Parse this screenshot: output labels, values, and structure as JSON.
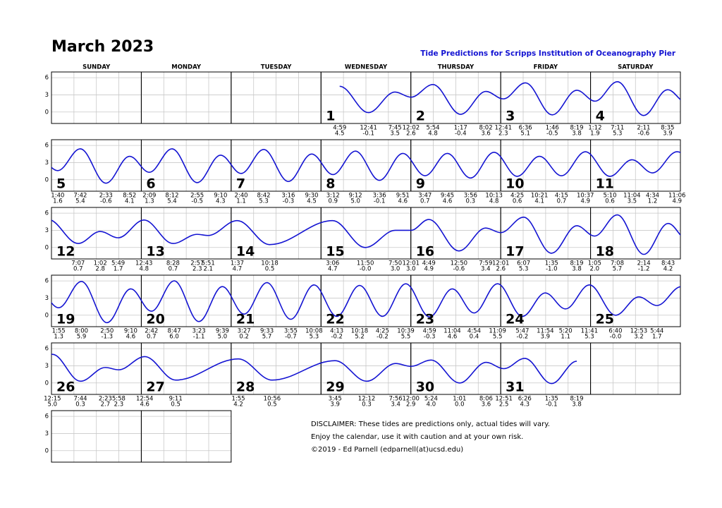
{
  "chart_data": {
    "type": "line",
    "title": "March 2023",
    "subtitle": "Tide Predictions for Scripps Institution of Oceanography Pier",
    "weekdays": [
      "SUNDAY",
      "MONDAY",
      "TUESDAY",
      "WEDNESDAY",
      "THURSDAY",
      "FRIDAY",
      "SATURDAY"
    ],
    "color": "#1414d2",
    "ylim": [
      -2,
      7
    ],
    "yticks": [
      6,
      3,
      0
    ],
    "grid": true,
    "days": [
      {
        "day": 1,
        "tides": [
          {
            "time": "4:59",
            "height": 4.5
          },
          {
            "time": "12:41",
            "height": -0.1
          },
          {
            "time": "7:45",
            "height": 3.5
          }
        ]
      },
      {
        "day": 2,
        "tides": [
          {
            "time": "12:02",
            "height": 2.6
          },
          {
            "time": "5:54",
            "height": 4.8
          },
          {
            "time": "1:17",
            "height": -0.4
          },
          {
            "time": "8:02",
            "height": 3.6
          }
        ]
      },
      {
        "day": 3,
        "tides": [
          {
            "time": "12:41",
            "height": 2.3
          },
          {
            "time": "6:36",
            "height": 5.1
          },
          {
            "time": "1:46",
            "height": -0.5
          },
          {
            "time": "8:19",
            "height": 3.8
          }
        ]
      },
      {
        "day": 4,
        "tides": [
          {
            "time": "1:12",
            "height": 1.9
          },
          {
            "time": "7:11",
            "height": 5.3
          },
          {
            "time": "2:11",
            "height": -0.6
          },
          {
            "time": "8:35",
            "height": 3.9
          }
        ]
      },
      {
        "day": 5,
        "tides": [
          {
            "time": "1:40",
            "height": 1.6
          },
          {
            "time": "7:42",
            "height": 5.4
          },
          {
            "time": "2:33",
            "height": -0.6
          },
          {
            "time": "8:52",
            "height": 4.1
          }
        ]
      },
      {
        "day": 6,
        "tides": [
          {
            "time": "2:09",
            "height": 1.3
          },
          {
            "time": "8:12",
            "height": 5.4
          },
          {
            "time": "2:55",
            "height": -0.5
          },
          {
            "time": "9:10",
            "height": 4.3
          }
        ]
      },
      {
        "day": 7,
        "tides": [
          {
            "time": "2:40",
            "height": 1.1
          },
          {
            "time": "8:42",
            "height": 5.3
          },
          {
            "time": "3:16",
            "height": -0.3
          },
          {
            "time": "9:30",
            "height": 4.5
          }
        ]
      },
      {
        "day": 8,
        "tides": [
          {
            "time": "3:12",
            "height": 0.9
          },
          {
            "time": "9:12",
            "height": 5,
            "label": "5.0"
          },
          {
            "time": "3:36",
            "height": -0.1
          },
          {
            "time": "9:51",
            "height": 4.6
          }
        ]
      },
      {
        "day": 9,
        "tides": [
          {
            "time": "3:47",
            "height": 0.7
          },
          {
            "time": "9:45",
            "height": 4.6
          },
          {
            "time": "3:56",
            "height": 0.3
          },
          {
            "time": "10:13",
            "height": 4.8
          }
        ]
      },
      {
        "day": 10,
        "tides": [
          {
            "time": "4:25",
            "height": 0.6
          },
          {
            "time": "10:21",
            "height": 4.1
          },
          {
            "time": "4:15",
            "height": 0.7
          },
          {
            "time": "10:37",
            "height": 4.9
          }
        ]
      },
      {
        "day": 11,
        "tides": [
          {
            "time": "5:10",
            "height": 0.6
          },
          {
            "time": "11:04",
            "height": 3.5
          },
          {
            "time": "4:34",
            "height": 1.2
          },
          {
            "time": "11:06",
            "height": 4.9
          }
        ]
      },
      {
        "day": 12,
        "tides": [
          {
            "time": "7:07",
            "height": 0.7
          },
          {
            "time": "1:02",
            "height": 2.8
          },
          {
            "time": "5:49",
            "height": 1.7
          }
        ]
      },
      {
        "day": 13,
        "tides": [
          {
            "time": "12:43",
            "height": 4.8
          },
          {
            "time": "8:28",
            "height": 0.7
          },
          {
            "time": "2:57",
            "height": 2.3
          },
          {
            "time": "5:51",
            "height": 2.1
          }
        ]
      },
      {
        "day": 14,
        "tides": [
          {
            "time": "1:37",
            "height": 4.7
          },
          {
            "time": "10:18",
            "height": 0.5
          }
        ]
      },
      {
        "day": 15,
        "tides": [
          {
            "time": "3:06",
            "height": 4.7
          },
          {
            "time": "11:50",
            "height": 0,
            "label": "-0.0"
          },
          {
            "time": "7:50",
            "height": 3,
            "label": "3.0"
          }
        ]
      },
      {
        "day": 16,
        "tides": [
          {
            "time": "12:01",
            "height": 3,
            "label": "3.0"
          },
          {
            "time": "4:49",
            "height": 4.9
          },
          {
            "time": "12:50",
            "height": -0.6
          },
          {
            "time": "7:59",
            "height": 3.4
          }
        ]
      },
      {
        "day": 17,
        "tides": [
          {
            "time": "12:01",
            "height": 2.6
          },
          {
            "time": "6:07",
            "height": 5.3
          },
          {
            "time": "1:35",
            "height": -1,
            "label": "-1.0"
          },
          {
            "time": "8:19",
            "height": 3.8
          }
        ]
      },
      {
        "day": 18,
        "tides": [
          {
            "time": "1:05",
            "height": 2,
            "label": "2.0"
          },
          {
            "time": "7:08",
            "height": 5.7
          },
          {
            "time": "2:14",
            "height": -1.2
          },
          {
            "time": "8:43",
            "height": 4.2
          }
        ]
      },
      {
        "day": 19,
        "tides": [
          {
            "time": "1:55",
            "height": 1.3
          },
          {
            "time": "8:00",
            "height": 5.9
          },
          {
            "time": "2:50",
            "height": -1.3
          },
          {
            "time": "9:10",
            "height": 4.6
          }
        ]
      },
      {
        "day": 20,
        "tides": [
          {
            "time": "2:42",
            "height": 0.7
          },
          {
            "time": "8:47",
            "height": 6,
            "label": "6.0"
          },
          {
            "time": "3:23",
            "height": -1.1
          },
          {
            "time": "9:39",
            "height": 5,
            "label": "5.0"
          }
        ]
      },
      {
        "day": 21,
        "tides": [
          {
            "time": "3:27",
            "height": 0.2
          },
          {
            "time": "9:33",
            "height": 5.7
          },
          {
            "time": "3:55",
            "height": -0.7
          },
          {
            "time": "10:08",
            "height": 5.3
          }
        ]
      },
      {
        "day": 22,
        "tides": [
          {
            "time": "4:13",
            "height": -0.2
          },
          {
            "time": "10:18",
            "height": 5.2
          },
          {
            "time": "4:25",
            "height": -0.2
          },
          {
            "time": "10:39",
            "height": 5.5
          }
        ]
      },
      {
        "day": 23,
        "tides": [
          {
            "time": "4:59",
            "height": -0.3
          },
          {
            "time": "11:04",
            "height": 4.6
          },
          {
            "time": "4:54",
            "height": 0.4
          },
          {
            "time": "11:09",
            "height": 5.5
          }
        ]
      },
      {
        "day": 24,
        "tides": [
          {
            "time": "5:47",
            "height": -0.2
          },
          {
            "time": "11:54",
            "height": 3.9
          },
          {
            "time": "5:20",
            "height": 1.1
          },
          {
            "time": "11:41",
            "height": 5.3
          }
        ]
      },
      {
        "day": 25,
        "tides": [
          {
            "time": "6:40",
            "height": 0,
            "label": "-0.0"
          },
          {
            "time": "12:53",
            "height": 3.2
          },
          {
            "time": "5:44",
            "height": 1.7
          }
        ]
      },
      {
        "day": 26,
        "tides": [
          {
            "time": "12:15",
            "height": 5,
            "label": "5.0"
          },
          {
            "time": "7:44",
            "height": 0.3
          },
          {
            "time": "2:23",
            "height": 2.7
          },
          {
            "time": "5:58",
            "height": 2.3
          }
        ]
      },
      {
        "day": 27,
        "tides": [
          {
            "time": "12:54",
            "height": 4.6
          },
          {
            "time": "9:11",
            "height": 0.5
          }
        ]
      },
      {
        "day": 28,
        "tides": [
          {
            "time": "1:55",
            "height": 4.2
          },
          {
            "time": "10:56",
            "height": 0.5
          }
        ]
      },
      {
        "day": 29,
        "tides": [
          {
            "time": "3:45",
            "height": 3.9
          },
          {
            "time": "12:12",
            "height": 0.3
          },
          {
            "time": "7:56",
            "height": 3.4
          }
        ]
      },
      {
        "day": 30,
        "tides": [
          {
            "time": "12:00",
            "height": 2.9
          },
          {
            "time": "5:24",
            "height": 4,
            "label": "4.0"
          },
          {
            "time": "1:01",
            "height": 0,
            "label": "0.0"
          },
          {
            "time": "8:06",
            "height": 3.6
          }
        ]
      },
      {
        "day": 31,
        "tides": [
          {
            "time": "12:51",
            "height": 2.5
          },
          {
            "time": "6:26",
            "height": 4.3
          },
          {
            "time": "1:35",
            "height": -0.1
          },
          {
            "time": "8:19",
            "height": 3.8
          }
        ]
      }
    ]
  },
  "notes": [
    "DISCLAIMER: These tides are predictions only, actual tides will vary.",
    "Enjoy the calendar, use it with caution and at your own risk.",
    "©2019 - Ed Parnell (edparnell(at)ucsd.edu)"
  ]
}
